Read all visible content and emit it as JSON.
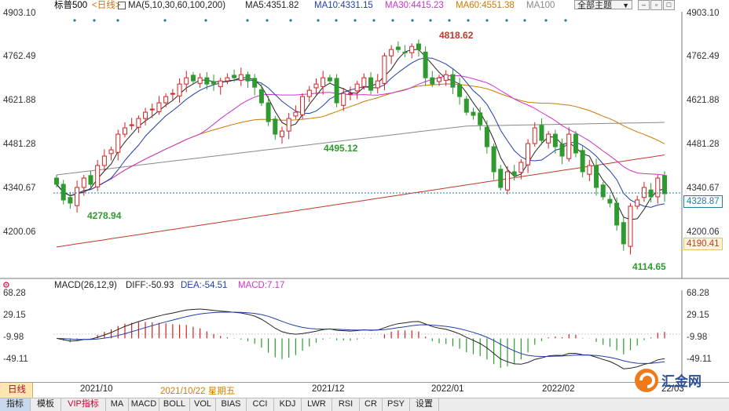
{
  "header": {
    "symbol": "标普500",
    "period": "<日线>",
    "ma_params": "MA(5,10,30,60,100,200)",
    "ma5": "MA5:4351.82",
    "ma10": "MA10:4331.15",
    "ma30": "MA30:4415.23",
    "ma60": "MA60:4551.38",
    "ma100": "MA100",
    "theme_dropdown": "全部主题",
    "colors": {
      "ma5": "#222222",
      "ma10": "#1f3fa6",
      "ma30": "#cc33cc",
      "ma60": "#cc7a00",
      "ma100": "#888888",
      "ma200": "#c0392b"
    }
  },
  "main_chart": {
    "y_axis_labels": [
      "4903.10",
      "4762.49",
      "4621.88",
      "4481.28",
      "4340.67",
      "4200.06"
    ],
    "current_price_label": "4328.87",
    "ma200_label": "4190.41",
    "annotations": {
      "high": "4818.62",
      "low1": "4278.94",
      "low2": "4495.12",
      "low3": "4114.65"
    },
    "colors": {
      "up": "#d42020",
      "down": "#2f9a2f",
      "current_line": "#1f7fa0"
    }
  },
  "macd_panel": {
    "label": "MACD(26,12,9)",
    "diff": "DIFF:-50.93",
    "dea": "DEA:-54.51",
    "macd": "MACD:7.17",
    "y_axis_labels": [
      "68.28",
      "29.15",
      "-9.98",
      "-49.11"
    ]
  },
  "date_axis": {
    "period_button": "日线",
    "dates": [
      "2021/10",
      "2021/10/22 星期五",
      "2021/12",
      "2022/01",
      "2022/02",
      "22/03"
    ]
  },
  "tabs": [
    "指标",
    "模板",
    "VIP指标",
    "MA",
    "MACD",
    "BOLL",
    "VOL",
    "BIAS",
    "CCI",
    "KDJ",
    "LWR",
    "RSI",
    "CR",
    "PSY",
    "设置"
  ],
  "watermark": "汇金网",
  "chart_data": {
    "type": "candlestick",
    "title": "标普500",
    "ylim": [
      4114.65,
      4903.1
    ],
    "annotations": [
      {
        "label": "4818.62",
        "value": 4818.62
      },
      {
        "label": "4278.94",
        "value": 4278.94
      },
      {
        "label": "4495.12",
        "value": 4495.12
      },
      {
        "label": "4114.65",
        "value": 4114.65
      }
    ],
    "series": [
      {
        "name": "MA5",
        "last": 4351.82
      },
      {
        "name": "MA10",
        "last": 4331.15
      },
      {
        "name": "MA30",
        "last": 4415.23
      },
      {
        "name": "MA60",
        "last": 4551.38
      }
    ],
    "close": [
      4360,
      4310,
      4300,
      4350,
      4380,
      4360,
      4420,
      4450,
      4470,
      4520,
      4540,
      4550,
      4570,
      4590,
      4600,
      4620,
      4640,
      4650,
      4680,
      4700,
      4690,
      4700,
      4680,
      4680,
      4690,
      4700,
      4700,
      4710,
      4690,
      4670,
      4620,
      4560,
      4520,
      4530,
      4570,
      4590,
      4640,
      4660,
      4680,
      4700,
      4690,
      4620,
      4650,
      4650,
      4680,
      4700,
      4660,
      4690,
      4770,
      4790,
      4790,
      4780,
      4800,
      4790,
      4700,
      4680,
      4700,
      4710,
      4670,
      4640,
      4590,
      4580,
      4550,
      4480,
      4400,
      4350,
      4400,
      4390,
      4430,
      4490,
      4540,
      4500,
      4520,
      4480,
      4450,
      4520,
      4460,
      4400,
      4420,
      4350,
      4320,
      4300,
      4230,
      4170,
      4290,
      4310,
      4350,
      4320,
      4380,
      4330
    ],
    "macd": {
      "diff": -50.93,
      "dea": -54.51,
      "macd": 7.17,
      "ylim": [
        -60,
        68.28
      ]
    }
  }
}
